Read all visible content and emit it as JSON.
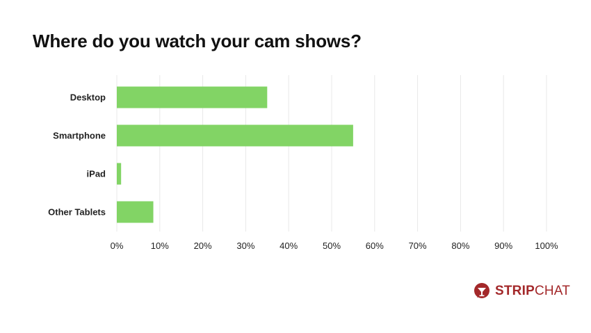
{
  "chart_data": {
    "type": "bar",
    "orientation": "horizontal",
    "title": "Where do you watch your cam shows?",
    "categories": [
      "Desktop",
      "Smartphone",
      "iPad",
      "Other Tablets"
    ],
    "values": [
      35,
      55,
      1,
      8.5
    ],
    "xlim": [
      0,
      100
    ],
    "xticks": [
      "0%",
      "10%",
      "20%",
      "30%",
      "40%",
      "50%",
      "60%",
      "70%",
      "80%",
      "90%",
      "100%"
    ],
    "grid": true,
    "bar_color": "#82d465",
    "grid_color": "#e8e8e8"
  },
  "brand": {
    "name_strong": "STRIP",
    "name_light": "CHAT",
    "color": "#a3282a"
  }
}
